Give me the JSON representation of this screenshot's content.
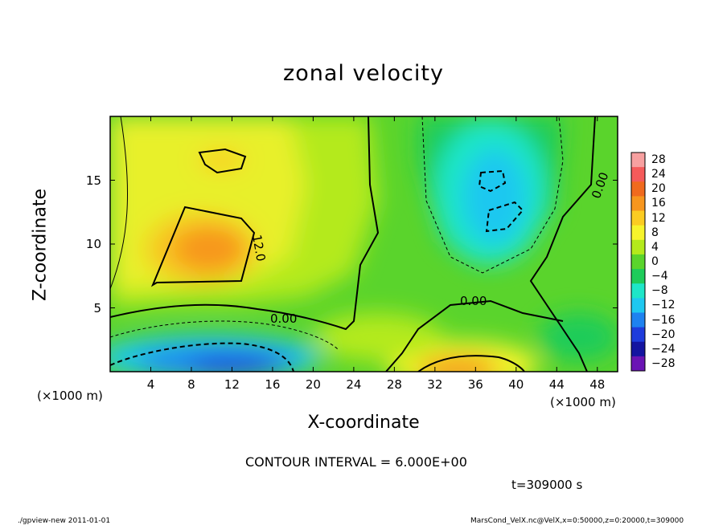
{
  "header": {
    "title": "zonal velocity"
  },
  "chart_data": {
    "type": "heatmap",
    "title": "zonal velocity",
    "xlabel": "X-coordinate",
    "ylabel": "Z-coordinate",
    "x_unit_label": "(×1000 m)",
    "xlim": [
      0,
      50
    ],
    "ylim": [
      0,
      20
    ],
    "x_ticks": [
      "4",
      "8",
      "12",
      "16",
      "20",
      "24",
      "28",
      "32",
      "36",
      "40",
      "44",
      "48"
    ],
    "x_tick_values": [
      4,
      8,
      12,
      16,
      20,
      24,
      28,
      32,
      36,
      40,
      44,
      48
    ],
    "y_ticks": [
      "5",
      "10",
      "15"
    ],
    "y_tick_values": [
      5,
      10,
      15
    ],
    "colorbar": {
      "labels": [
        "28",
        "24",
        "20",
        "16",
        "12",
        "8",
        "4",
        "0",
        "−4",
        "−8",
        "−12",
        "−16",
        "−20",
        "−24",
        "−28"
      ],
      "values": [
        28,
        24,
        20,
        16,
        12,
        8,
        4,
        0,
        -4,
        -8,
        -12,
        -16,
        -20,
        -24,
        -28
      ],
      "colors": [
        "#f7a0a0",
        "#f55a5a",
        "#f06a1e",
        "#f7961e",
        "#fbcc22",
        "#f7f42c",
        "#b4ea1c",
        "#5ad42c",
        "#1ecc5a",
        "#1ee6c8",
        "#1ec8f0",
        "#1e82f0",
        "#1e3cdc",
        "#1414a0",
        "#6a14b4"
      ]
    },
    "contour_labels": [
      "12.0",
      "0.00",
      "0.00",
      "0.00"
    ],
    "contour_interval": "CONTOUR INTERVAL = 6.000E+00"
  },
  "annotations": {
    "time": "t=309000 s",
    "footer_left": "./gpview-new   2011-01-01",
    "footer_right": "MarsCond_VelX.nc@VelX,x=0:50000,z=0:20000,t=309000"
  }
}
